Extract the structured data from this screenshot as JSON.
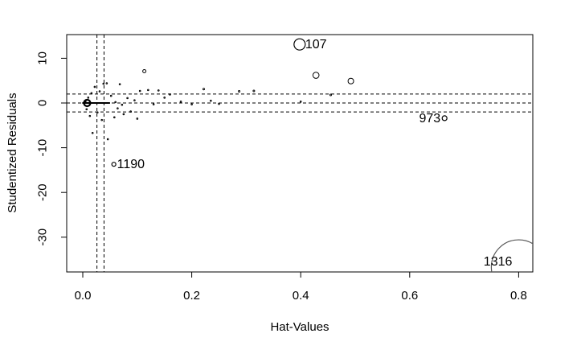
{
  "chart_data": {
    "type": "scatter",
    "xlabel": "Hat-Values",
    "ylabel": "Studentized Residuals",
    "xlim": [
      -0.03,
      0.83
    ],
    "ylim": [
      -38,
      15
    ],
    "x_ticks": [
      0.0,
      0.2,
      0.4,
      0.6,
      0.8
    ],
    "x_tick_labels": [
      "0.0",
      "0.2",
      "0.4",
      "0.6",
      "0.8"
    ],
    "y_ticks": [
      -30,
      -20,
      -10,
      0,
      10
    ],
    "y_tick_labels": [
      "-30",
      "-20",
      "-10",
      "0",
      "10"
    ],
    "reference_lines": {
      "horizontal": [
        -2,
        0,
        2
      ],
      "vertical": [
        0.026,
        0.039
      ],
      "style": "dashed"
    },
    "grid": false,
    "point_size_encoding": "Cook's distance (circle area)",
    "labeled_points": [
      {
        "label": "107",
        "x": 0.398,
        "y": 13.1,
        "size": 7
      },
      {
        "label": "973",
        "x": 0.664,
        "y": -3.4,
        "size": 3
      },
      {
        "label": "1190",
        "x": 0.057,
        "y": -13.7,
        "size": 2.5
      },
      {
        "label": "1316",
        "x": 0.8,
        "y": -36.7,
        "size": 34
      }
    ],
    "points": [
      {
        "x": 0.428,
        "y": 6.2,
        "size": 3.8
      },
      {
        "x": 0.492,
        "y": 4.9,
        "size": 3.5
      },
      {
        "x": 0.113,
        "y": 7.1,
        "size": 2
      },
      {
        "x": 0.455,
        "y": 1.8,
        "size": 1
      },
      {
        "x": 0.314,
        "y": 2.7,
        "size": 1
      },
      {
        "x": 0.287,
        "y": 2.6,
        "size": 1
      },
      {
        "x": 0.222,
        "y": 3.1,
        "size": 1
      },
      {
        "x": 0.15,
        "y": 1.2,
        "size": 0.8
      },
      {
        "x": 0.139,
        "y": 2.8,
        "size": 0.8
      },
      {
        "x": 0.12,
        "y": 2.9,
        "size": 0.8
      },
      {
        "x": 0.105,
        "y": 2.7,
        "size": 0.8
      },
      {
        "x": 0.1,
        "y": -3.5,
        "size": 0.8
      },
      {
        "x": 0.088,
        "y": -1.9,
        "size": 0.8
      },
      {
        "x": 0.082,
        "y": 1.1,
        "size": 0.8
      },
      {
        "x": 0.075,
        "y": -2.5,
        "size": 0.8
      },
      {
        "x": 0.068,
        "y": 4.2,
        "size": 0.8
      },
      {
        "x": 0.064,
        "y": -1.2,
        "size": 0.8
      },
      {
        "x": 0.058,
        "y": -3.2,
        "size": 0.8
      },
      {
        "x": 0.052,
        "y": 1.6,
        "size": 0.8
      },
      {
        "x": 0.046,
        "y": -8.1,
        "size": 0.8
      },
      {
        "x": 0.044,
        "y": 4.4,
        "size": 0.8
      },
      {
        "x": 0.038,
        "y": 4.3,
        "size": 0.8
      },
      {
        "x": 0.035,
        "y": -3.8,
        "size": 0.8
      },
      {
        "x": 0.031,
        "y": 2.6,
        "size": 0.8
      },
      {
        "x": 0.027,
        "y": -2.1,
        "size": 0.8
      },
      {
        "x": 0.022,
        "y": 3.6,
        "size": 0.8
      },
      {
        "x": 0.018,
        "y": -6.7,
        "size": 0.8
      },
      {
        "x": 0.016,
        "y": 2.2,
        "size": 0.8
      },
      {
        "x": 0.013,
        "y": -2.9,
        "size": 0.8
      },
      {
        "x": 0.01,
        "y": 1.2,
        "size": 0.8
      },
      {
        "x": 0.007,
        "y": -1.4,
        "size": 0.8
      },
      {
        "x": 0.005,
        "y": 0.4,
        "size": 0.8
      },
      {
        "x": 0.06,
        "y": 0.2,
        "size": 0.8
      },
      {
        "x": 0.072,
        "y": -0.4,
        "size": 0.8
      },
      {
        "x": 0.095,
        "y": 0.6,
        "size": 0.8
      },
      {
        "x": 0.13,
        "y": -0.3,
        "size": 0.8
      },
      {
        "x": 0.16,
        "y": 1.9,
        "size": 0.8
      },
      {
        "x": 0.18,
        "y": 0.3,
        "size": 0.8
      },
      {
        "x": 0.2,
        "y": -0.3,
        "size": 0.8
      },
      {
        "x": 0.235,
        "y": 0.5,
        "size": 0.8
      },
      {
        "x": 0.25,
        "y": -0.2,
        "size": 0.8
      },
      {
        "x": 0.4,
        "y": 0.3,
        "size": 0.8
      }
    ],
    "cluster": {
      "x": 0.008,
      "y": 0.0,
      "size": 4
    }
  }
}
